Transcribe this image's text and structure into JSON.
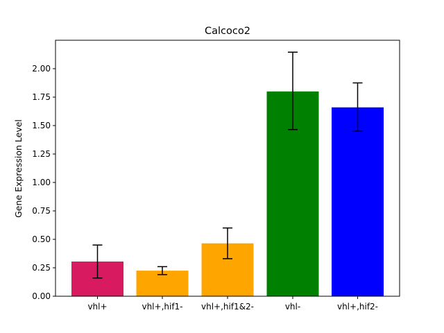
{
  "chart_data": {
    "type": "bar",
    "title": "Calcoco2",
    "xlabel": "",
    "ylabel": "Gene Expression Level",
    "categories": [
      "vhl+",
      "vhl+,hif1-",
      "vhl+,hif1&2-",
      "vhl-",
      "vhl+,hif2-"
    ],
    "values": [
      0.305,
      0.225,
      0.465,
      1.8,
      1.66
    ],
    "error_low": [
      0.16,
      0.19,
      0.33,
      1.465,
      1.45
    ],
    "error_high": [
      0.45,
      0.26,
      0.6,
      2.145,
      1.875
    ],
    "colors": [
      "#d81b60",
      "#ffa500",
      "#ffa500",
      "#008000",
      "#0000ff"
    ],
    "ylim": [
      0,
      2.25
    ],
    "yticks": [
      0.0,
      0.25,
      0.5,
      0.75,
      1.0,
      1.25,
      1.5,
      1.75,
      2.0
    ],
    "ytick_labels": [
      "0.00",
      "0.25",
      "0.50",
      "0.75",
      "1.00",
      "1.25",
      "1.50",
      "1.75",
      "2.00"
    ],
    "grid": false,
    "legend": "none"
  }
}
